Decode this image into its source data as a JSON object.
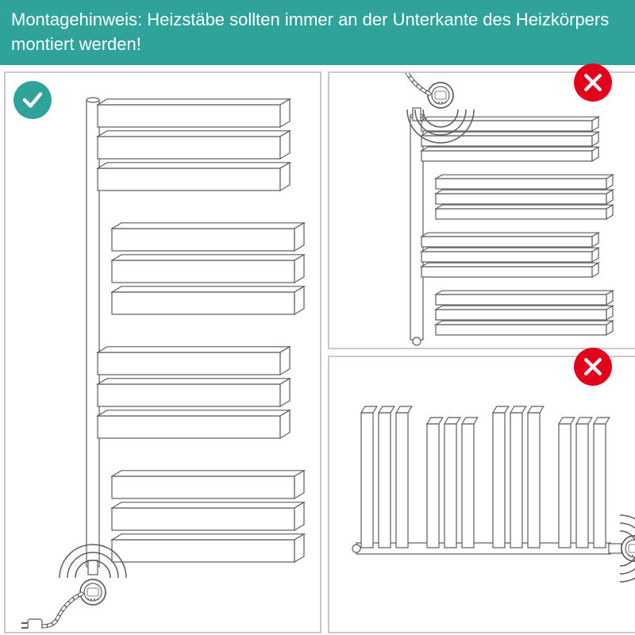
{
  "header": {
    "text": "Montagehinweis: Heizstäbe sollten immer an der Unterkante des Heizkörpers montiert werden!",
    "bg_color": "#2fa29a",
    "text_color": "#ffffff",
    "fontsize": 22
  },
  "panel_border_color": "#c9c9c9",
  "colors": {
    "stroke": "#5c5c5c",
    "fill": "#ffffff",
    "check_bg": "#2fa29a",
    "cross_bg": "#e3001b",
    "signal": "#5c5c5c"
  },
  "correct": {
    "orientation": "vertical_bottom",
    "bar_count": 12,
    "groups": [
      3,
      3,
      3,
      3
    ],
    "badge": "check"
  },
  "wrong_top": {
    "orientation": "vertical_top",
    "bar_count": 12,
    "groups": [
      3,
      3,
      3,
      3
    ],
    "badge": "cross"
  },
  "wrong_side": {
    "orientation": "horizontal_side",
    "bar_count": 12,
    "groups": [
      3,
      3,
      3,
      3
    ],
    "badge": "cross"
  },
  "line_width": 1.2
}
